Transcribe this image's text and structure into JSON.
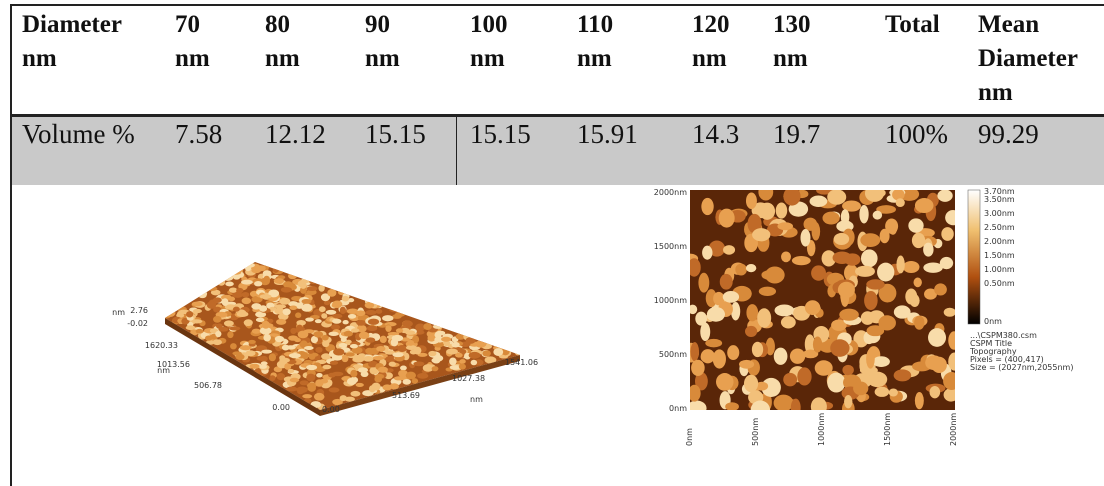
{
  "table": {
    "header": [
      "Diameter nm",
      "70 nm",
      "80 nm",
      "90 nm",
      "100 nm",
      "110 nm",
      "120 nm",
      "130 nm",
      "Total",
      "Mean Diameter nm"
    ],
    "rows": [
      [
        "Volume %",
        "7.58",
        "12.12",
        "15.15",
        "15.15",
        "15.91",
        "14.3",
        "19.7",
        "100%",
        "99.29"
      ]
    ]
  },
  "surface_3d": {
    "z_labels": [
      "2.76",
      "-0.02"
    ],
    "z_unit": "nm",
    "y_labels": [
      "1620.33",
      "1013.56",
      "506.78",
      "0.00"
    ],
    "y_unit": "nm",
    "x_labels": [
      "0.00",
      "513.69",
      "1027.38",
      "1541.06"
    ],
    "x_unit": "nm"
  },
  "topography_2d": {
    "y_labels": [
      "2000nm",
      "1500nm",
      "1000nm",
      "500nm",
      "0nm"
    ],
    "x_labels": [
      "0nm",
      "500nm",
      "1000nm",
      "1500nm",
      "2000nm"
    ],
    "colorbar_labels": [
      "3.70nm",
      "3.50nm",
      "3.00nm",
      "2.50nm",
      "2.00nm",
      "1.50nm",
      "1.00nm",
      "0.50nm",
      "0nm"
    ],
    "info": [
      "...\\CSPM380.csm",
      "CSPM Title",
      "Topography",
      "Pixels = (400,417)",
      "Size = (2027nm,2055nm)"
    ]
  }
}
